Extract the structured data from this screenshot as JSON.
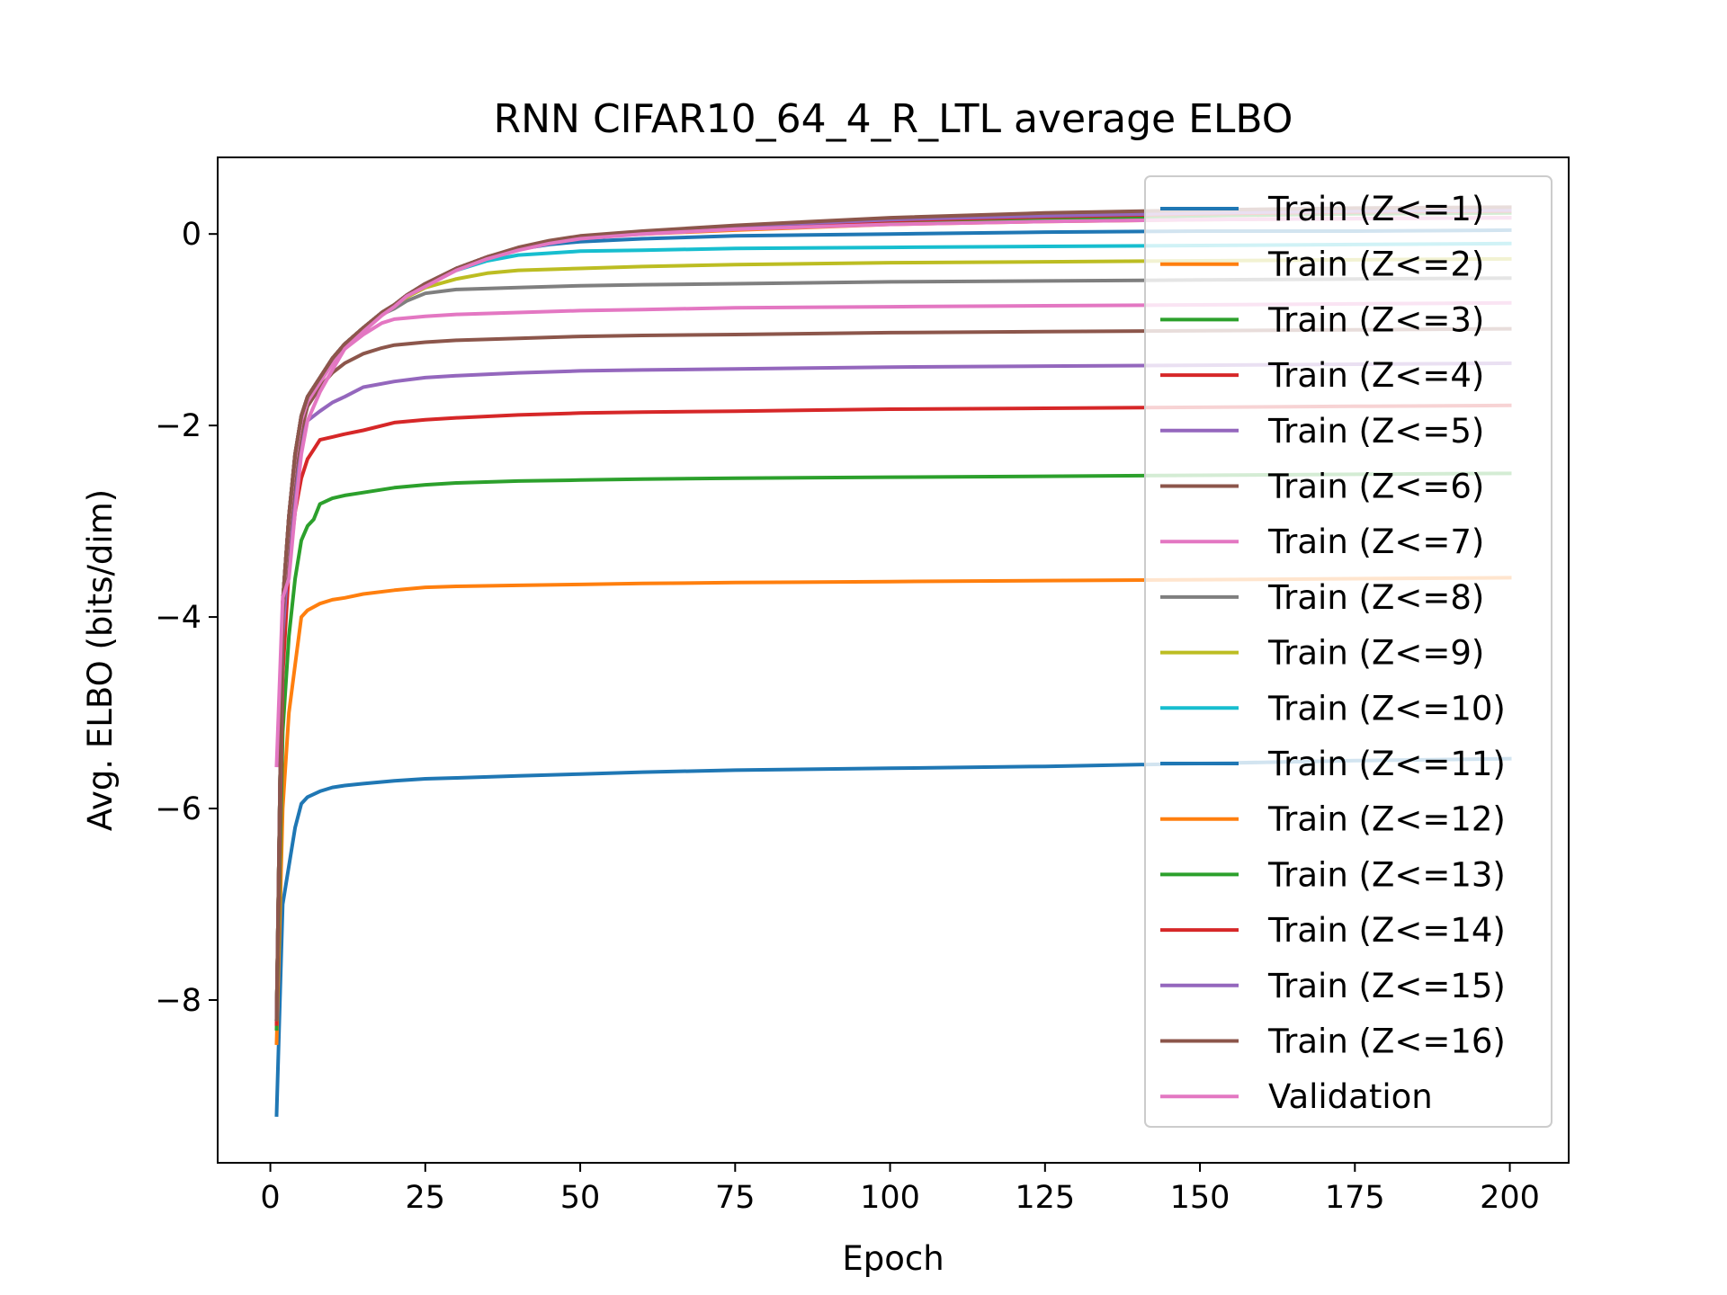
{
  "chart_data": {
    "type": "line",
    "title": "RNN CIFAR10_64_4_R_LTL average ELBO",
    "xlabel": "Epoch",
    "ylabel": "Avg. ELBO (bits/dim)",
    "xlim": [
      -8.5,
      209.5
    ],
    "ylim": [
      -9.7,
      0.8
    ],
    "xticks": [
      0,
      25,
      50,
      75,
      100,
      125,
      150,
      175,
      200
    ],
    "yticks": [
      -8,
      -6,
      -4,
      -2,
      0
    ],
    "grid": false,
    "legend_position": "top-right",
    "series": [
      {
        "name": "Train (Z<=1)",
        "color": "#1f77b4",
        "x": [
          1,
          2,
          3,
          4,
          5,
          6,
          8,
          10,
          12,
          15,
          20,
          25,
          30,
          40,
          50,
          60,
          75,
          100,
          125,
          150,
          175,
          200
        ],
        "values": [
          -9.2,
          -7.0,
          -6.6,
          -6.2,
          -5.95,
          -5.88,
          -5.82,
          -5.78,
          -5.76,
          -5.74,
          -5.71,
          -5.69,
          -5.68,
          -5.66,
          -5.64,
          -5.62,
          -5.6,
          -5.58,
          -5.56,
          -5.53,
          -5.5,
          -5.48
        ]
      },
      {
        "name": "Train (Z<=2)",
        "color": "#ff7f0e",
        "x": [
          1,
          2,
          3,
          4,
          5,
          6,
          8,
          10,
          12,
          15,
          20,
          25,
          30,
          40,
          50,
          60,
          75,
          100,
          125,
          150,
          175,
          200
        ],
        "values": [
          -8.45,
          -6.0,
          -5.0,
          -4.5,
          -4.0,
          -3.93,
          -3.86,
          -3.82,
          -3.8,
          -3.76,
          -3.72,
          -3.69,
          -3.68,
          -3.67,
          -3.66,
          -3.65,
          -3.64,
          -3.63,
          -3.62,
          -3.61,
          -3.6,
          -3.59
        ]
      },
      {
        "name": "Train (Z<=3)",
        "color": "#2ca02c",
        "x": [
          1,
          2,
          3,
          4,
          5,
          6,
          7,
          8,
          10,
          12,
          15,
          20,
          25,
          30,
          40,
          50,
          60,
          75,
          100,
          125,
          150,
          175,
          200
        ],
        "values": [
          -8.3,
          -5.2,
          -4.2,
          -3.6,
          -3.2,
          -3.05,
          -2.98,
          -2.82,
          -2.76,
          -2.73,
          -2.7,
          -2.65,
          -2.62,
          -2.6,
          -2.58,
          -2.57,
          -2.56,
          -2.55,
          -2.54,
          -2.53,
          -2.52,
          -2.51,
          -2.5
        ]
      },
      {
        "name": "Train (Z<=4)",
        "color": "#d62728",
        "x": [
          1,
          2,
          3,
          4,
          5,
          6,
          7,
          8,
          10,
          12,
          15,
          20,
          25,
          30,
          40,
          50,
          60,
          75,
          100,
          125,
          150,
          175,
          200
        ],
        "values": [
          -8.25,
          -4.6,
          -3.5,
          -2.9,
          -2.55,
          -2.35,
          -2.25,
          -2.15,
          -2.12,
          -2.09,
          -2.05,
          -1.97,
          -1.94,
          -1.92,
          -1.89,
          -1.87,
          -1.86,
          -1.85,
          -1.83,
          -1.82,
          -1.81,
          -1.8,
          -1.79
        ]
      },
      {
        "name": "Train (Z<=5)",
        "color": "#9467bd",
        "x": [
          1,
          2,
          3,
          4,
          5,
          6,
          8,
          10,
          12,
          15,
          20,
          25,
          30,
          40,
          50,
          60,
          75,
          100,
          125,
          150,
          175,
          200
        ],
        "values": [
          -8.2,
          -4.2,
          -3.3,
          -2.6,
          -2.15,
          -1.95,
          -1.85,
          -1.76,
          -1.7,
          -1.6,
          -1.54,
          -1.5,
          -1.48,
          -1.45,
          -1.43,
          -1.42,
          -1.41,
          -1.39,
          -1.38,
          -1.37,
          -1.36,
          -1.35
        ]
      },
      {
        "name": "Train (Z<=6)",
        "color": "#8c564b",
        "x": [
          1,
          2,
          3,
          4,
          5,
          6,
          8,
          10,
          12,
          15,
          18,
          20,
          25,
          30,
          40,
          50,
          60,
          75,
          100,
          125,
          150,
          175,
          200
        ],
        "values": [
          -8.2,
          -4.0,
          -3.1,
          -2.45,
          -2.05,
          -1.8,
          -1.6,
          -1.45,
          -1.35,
          -1.25,
          -1.19,
          -1.16,
          -1.13,
          -1.11,
          -1.09,
          -1.07,
          -1.06,
          -1.05,
          -1.03,
          -1.02,
          -1.01,
          -1.0,
          -0.99
        ]
      },
      {
        "name": "Train (Z<=7)",
        "color": "#e377c2",
        "x": [
          1,
          2,
          3,
          4,
          5,
          6,
          8,
          10,
          12,
          15,
          18,
          20,
          25,
          30,
          40,
          50,
          60,
          75,
          100,
          125,
          150,
          175,
          200
        ],
        "values": [
          -8.2,
          -3.9,
          -3.0,
          -2.35,
          -1.95,
          -1.75,
          -1.55,
          -1.35,
          -1.2,
          -1.05,
          -0.93,
          -0.89,
          -0.86,
          -0.84,
          -0.82,
          -0.8,
          -0.79,
          -0.77,
          -0.76,
          -0.75,
          -0.74,
          -0.73,
          -0.72
        ]
      },
      {
        "name": "Train (Z<=8)",
        "color": "#7f7f7f",
        "x": [
          1,
          2,
          3,
          4,
          5,
          6,
          8,
          10,
          12,
          15,
          18,
          20,
          22,
          25,
          30,
          40,
          50,
          60,
          75,
          100,
          125,
          150,
          175,
          200
        ],
        "values": [
          -8.2,
          -3.85,
          -2.95,
          -2.3,
          -1.9,
          -1.7,
          -1.5,
          -1.3,
          -1.15,
          -0.98,
          -0.84,
          -0.78,
          -0.7,
          -0.62,
          -0.58,
          -0.56,
          -0.54,
          -0.53,
          -0.52,
          -0.5,
          -0.49,
          -0.48,
          -0.47,
          -0.46
        ]
      },
      {
        "name": "Train (Z<=9)",
        "color": "#bcbd22",
        "x": [
          1,
          2,
          3,
          4,
          5,
          6,
          8,
          10,
          12,
          15,
          18,
          20,
          22,
          25,
          30,
          35,
          40,
          50,
          60,
          75,
          100,
          125,
          150,
          175,
          200
        ],
        "values": [
          -8.2,
          -3.85,
          -2.95,
          -2.3,
          -1.9,
          -1.7,
          -1.5,
          -1.3,
          -1.15,
          -0.98,
          -0.82,
          -0.74,
          -0.66,
          -0.56,
          -0.47,
          -0.41,
          -0.38,
          -0.36,
          -0.34,
          -0.32,
          -0.3,
          -0.29,
          -0.28,
          -0.27,
          -0.26
        ]
      },
      {
        "name": "Train (Z<=10)",
        "color": "#17becf",
        "x": [
          1,
          2,
          3,
          4,
          5,
          6,
          8,
          10,
          12,
          15,
          18,
          20,
          22,
          25,
          30,
          35,
          40,
          45,
          50,
          60,
          75,
          100,
          125,
          150,
          175,
          200
        ],
        "values": [
          -8.2,
          -3.85,
          -2.95,
          -2.3,
          -1.9,
          -1.7,
          -1.5,
          -1.3,
          -1.15,
          -0.98,
          -0.82,
          -0.74,
          -0.64,
          -0.52,
          -0.38,
          -0.28,
          -0.22,
          -0.2,
          -0.18,
          -0.17,
          -0.15,
          -0.14,
          -0.13,
          -0.12,
          -0.11,
          -0.1
        ]
      },
      {
        "name": "Train (Z<=11)",
        "color": "#1f77b4",
        "x": [
          1,
          2,
          3,
          4,
          5,
          6,
          8,
          10,
          12,
          15,
          18,
          20,
          22,
          25,
          30,
          35,
          40,
          45,
          50,
          60,
          75,
          100,
          125,
          150,
          175,
          200
        ],
        "values": [
          -8.2,
          -3.85,
          -2.95,
          -2.3,
          -1.9,
          -1.7,
          -1.5,
          -1.3,
          -1.15,
          -0.98,
          -0.82,
          -0.74,
          -0.64,
          -0.52,
          -0.36,
          -0.24,
          -0.16,
          -0.11,
          -0.08,
          -0.05,
          -0.02,
          0.0,
          0.02,
          0.03,
          0.03,
          0.04
        ]
      },
      {
        "name": "Train (Z<=12)",
        "color": "#ff7f0e",
        "x": [
          1,
          2,
          3,
          4,
          5,
          6,
          8,
          10,
          12,
          15,
          18,
          20,
          22,
          25,
          30,
          35,
          40,
          45,
          50,
          60,
          75,
          100,
          125,
          150,
          175,
          200
        ],
        "values": [
          -8.2,
          -3.85,
          -2.95,
          -2.3,
          -1.9,
          -1.7,
          -1.5,
          -1.3,
          -1.15,
          -0.98,
          -0.82,
          -0.74,
          -0.64,
          -0.52,
          -0.36,
          -0.24,
          -0.15,
          -0.09,
          -0.04,
          0.0,
          0.04,
          0.1,
          0.13,
          0.15,
          0.16,
          0.17
        ]
      },
      {
        "name": "Train (Z<=13)",
        "color": "#2ca02c",
        "x": [
          1,
          2,
          3,
          4,
          5,
          6,
          8,
          10,
          12,
          15,
          18,
          20,
          22,
          25,
          30,
          35,
          40,
          45,
          50,
          60,
          75,
          100,
          125,
          150,
          175,
          200
        ],
        "values": [
          -8.2,
          -3.85,
          -2.95,
          -2.3,
          -1.9,
          -1.7,
          -1.5,
          -1.3,
          -1.15,
          -0.98,
          -0.82,
          -0.74,
          -0.64,
          -0.52,
          -0.36,
          -0.24,
          -0.15,
          -0.08,
          -0.03,
          0.01,
          0.06,
          0.12,
          0.16,
          0.19,
          0.21,
          0.22
        ]
      },
      {
        "name": "Train (Z<=14)",
        "color": "#d62728",
        "x": [
          1,
          2,
          3,
          4,
          5,
          6,
          8,
          10,
          12,
          15,
          18,
          20,
          22,
          25,
          30,
          35,
          40,
          45,
          50,
          60,
          75,
          100,
          125,
          150,
          175,
          200
        ],
        "values": [
          -8.2,
          -3.85,
          -2.95,
          -2.3,
          -1.9,
          -1.7,
          -1.5,
          -1.3,
          -1.15,
          -0.98,
          -0.82,
          -0.74,
          -0.64,
          -0.52,
          -0.36,
          -0.24,
          -0.15,
          -0.08,
          -0.03,
          0.02,
          0.07,
          0.14,
          0.18,
          0.21,
          0.23,
          0.24
        ]
      },
      {
        "name": "Train (Z<=15)",
        "color": "#9467bd",
        "x": [
          1,
          2,
          3,
          4,
          5,
          6,
          8,
          10,
          12,
          15,
          18,
          20,
          22,
          25,
          30,
          35,
          40,
          45,
          50,
          60,
          75,
          100,
          125,
          150,
          175,
          200
        ],
        "values": [
          -8.2,
          -3.85,
          -2.95,
          -2.3,
          -1.9,
          -1.7,
          -1.5,
          -1.3,
          -1.15,
          -0.98,
          -0.82,
          -0.74,
          -0.64,
          -0.52,
          -0.36,
          -0.24,
          -0.15,
          -0.08,
          -0.03,
          0.02,
          0.08,
          0.15,
          0.19,
          0.22,
          0.24,
          0.25
        ]
      },
      {
        "name": "Train (Z<=16)",
        "color": "#8c564b",
        "x": [
          1,
          2,
          3,
          4,
          5,
          6,
          8,
          10,
          12,
          15,
          18,
          20,
          22,
          25,
          30,
          35,
          40,
          45,
          50,
          60,
          75,
          100,
          125,
          150,
          175,
          200
        ],
        "values": [
          -8.2,
          -3.85,
          -2.95,
          -2.3,
          -1.9,
          -1.7,
          -1.5,
          -1.3,
          -1.15,
          -0.98,
          -0.82,
          -0.74,
          -0.64,
          -0.52,
          -0.36,
          -0.24,
          -0.14,
          -0.07,
          -0.02,
          0.03,
          0.09,
          0.17,
          0.22,
          0.25,
          0.27,
          0.28
        ]
      },
      {
        "name": "Validation",
        "color": "#e377c2",
        "x": [
          1,
          2,
          3,
          4,
          5,
          6,
          8,
          10,
          12,
          15,
          18,
          20,
          22,
          25,
          30,
          35,
          40,
          45,
          50,
          60,
          75,
          100,
          125,
          150,
          175,
          200
        ],
        "values": [
          -5.55,
          -3.8,
          -3.6,
          -2.9,
          -2.3,
          -1.95,
          -1.65,
          -1.42,
          -1.2,
          -1.02,
          -0.85,
          -0.76,
          -0.65,
          -0.55,
          -0.38,
          -0.26,
          -0.17,
          -0.1,
          -0.05,
          0.0,
          0.05,
          0.1,
          0.13,
          0.15,
          0.16,
          0.17
        ]
      }
    ]
  }
}
